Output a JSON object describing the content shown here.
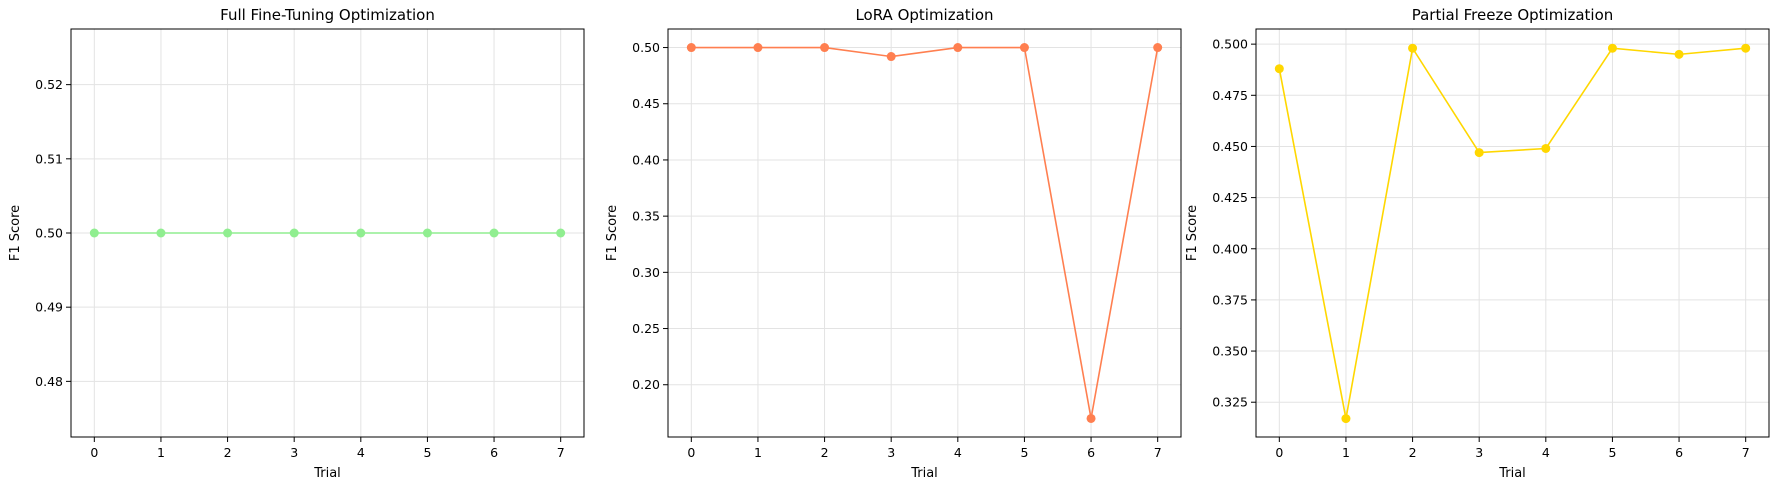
{
  "chart_data": [
    {
      "type": "line",
      "title": "Full Fine-Tuning Optimization",
      "xlabel": "Trial",
      "ylabel": "F1 Score",
      "x": [
        0,
        1,
        2,
        3,
        4,
        5,
        6,
        7
      ],
      "xticks": [
        "0",
        "1",
        "2",
        "3",
        "4",
        "5",
        "6",
        "7"
      ],
      "xlim": [
        -0.35,
        7.35
      ],
      "ylim": [
        0.4725,
        0.5275
      ],
      "yticks": [
        0.48,
        0.49,
        0.5,
        0.51,
        0.52
      ],
      "ytick_labels": [
        "0.48",
        "0.49",
        "0.50",
        "0.51",
        "0.52"
      ],
      "grid": true,
      "series": [
        {
          "values": [
            0.5,
            0.5,
            0.5,
            0.5,
            0.5,
            0.5,
            0.5,
            0.5
          ],
          "color": "#90ee90",
          "marker": "circle"
        }
      ]
    },
    {
      "type": "line",
      "title": "LoRA Optimization",
      "xlabel": "Trial",
      "ylabel": "F1 Score",
      "x": [
        0,
        1,
        2,
        3,
        4,
        5,
        6,
        7
      ],
      "xticks": [
        "0",
        "1",
        "2",
        "3",
        "4",
        "5",
        "6",
        "7"
      ],
      "xlim": [
        -0.35,
        7.35
      ],
      "ylim": [
        0.1535,
        0.5165
      ],
      "yticks": [
        0.2,
        0.25,
        0.3,
        0.35,
        0.4,
        0.45,
        0.5
      ],
      "ytick_labels": [
        "0.20",
        "0.25",
        "0.30",
        "0.35",
        "0.40",
        "0.45",
        "0.50"
      ],
      "grid": true,
      "series": [
        {
          "values": [
            0.5,
            0.5,
            0.5,
            0.492,
            0.5,
            0.5,
            0.17,
            0.5
          ],
          "color": "#ff7f50",
          "marker": "circle"
        }
      ]
    },
    {
      "type": "line",
      "title": "Partial Freeze Optimization",
      "xlabel": "Trial",
      "ylabel": "F1 Score",
      "x": [
        0,
        1,
        2,
        3,
        4,
        5,
        6,
        7
      ],
      "xticks": [
        "0",
        "1",
        "2",
        "3",
        "4",
        "5",
        "6",
        "7"
      ],
      "xlim": [
        -0.35,
        7.35
      ],
      "ylim": [
        0.308,
        0.5074
      ],
      "yticks": [
        0.325,
        0.35,
        0.375,
        0.4,
        0.425,
        0.45,
        0.475,
        0.5
      ],
      "ytick_labels": [
        "0.325",
        "0.350",
        "0.375",
        "0.400",
        "0.425",
        "0.450",
        "0.475",
        "0.500"
      ],
      "grid": true,
      "series": [
        {
          "values": [
            0.488,
            0.317,
            0.498,
            0.447,
            0.449,
            0.498,
            0.495,
            0.498
          ],
          "color": "#ffd700",
          "marker": "circle"
        }
      ]
    }
  ]
}
